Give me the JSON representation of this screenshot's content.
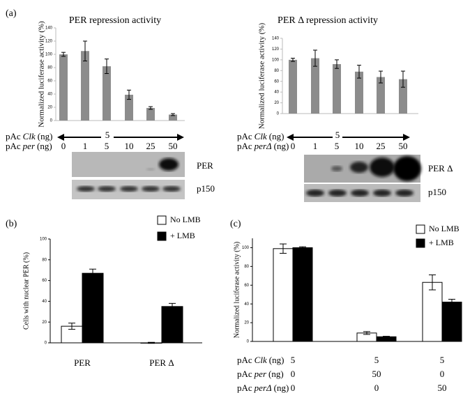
{
  "chart_data": [
    {
      "type": "bar",
      "panel_label": "(a)",
      "title": "PER repression activity",
      "y_label": "Normalized luciferase activity (%)",
      "ylim": [
        0,
        140
      ],
      "yticks": [
        0,
        20,
        40,
        60,
        80,
        100,
        120,
        140
      ],
      "color": "#8c8c8c",
      "categories": [
        "0",
        "1",
        "5",
        "10",
        "25",
        "50"
      ],
      "values": [
        100,
        105,
        82,
        39,
        19,
        9
      ],
      "errors": [
        3,
        15,
        11,
        7,
        2,
        1.5
      ],
      "clk_row": {
        "prefix": "pAc",
        "gene": "Clk",
        "unit": "(ng)",
        "value": "5"
      },
      "per_row": {
        "prefix": "pAc",
        "gene": "per",
        "unit": "(ng)"
      },
      "blot_labels": [
        "PER",
        "p150"
      ]
    },
    {
      "type": "bar",
      "title": "PER Δ repression activity",
      "y_label": "Normalized luciferase activity (%)",
      "ylim": [
        0,
        140
      ],
      "yticks": [
        0,
        20,
        40,
        60,
        80,
        100,
        120,
        140
      ],
      "color": "#8c8c8c",
      "categories": [
        "0",
        "1",
        "5",
        "10",
        "25",
        "50"
      ],
      "values": [
        100,
        103,
        92,
        78,
        68,
        64
      ],
      "errors": [
        3,
        15,
        8,
        12,
        11,
        15
      ],
      "clk_row": {
        "prefix": "pAc",
        "gene": "Clk",
        "unit": "(ng)",
        "value": "5"
      },
      "per_row": {
        "prefix": "pAc",
        "gene": "perΔ",
        "unit": "(ng)"
      },
      "blot_labels": [
        "PER Δ",
        "p150"
      ]
    },
    {
      "type": "grouped_bar",
      "panel_label": "(b)",
      "y_label": "Cells with nuclear PER (%)",
      "ylim": [
        0,
        100
      ],
      "yticks": [
        0,
        20,
        40,
        60,
        80,
        100
      ],
      "categories": [
        "PER",
        "PER Δ"
      ],
      "series": [
        {
          "name": "No LMB",
          "color": "#ffffff",
          "values": [
            16,
            0
          ],
          "errors": [
            3,
            0.5
          ]
        },
        {
          "name": "+  LMB",
          "color": "#000000",
          "values": [
            67,
            35
          ],
          "errors": [
            4,
            3
          ]
        }
      ]
    },
    {
      "type": "grouped_bar",
      "panel_label": "(c)",
      "y_label": "Normalized luciferase activity (%)",
      "ylim": [
        0,
        110
      ],
      "yticks": [
        0,
        20,
        40,
        60,
        80,
        100
      ],
      "series": [
        {
          "name": "No LMB",
          "color": "#ffffff",
          "values": [
            99,
            9,
            63
          ],
          "errors": [
            5,
            1.5,
            8
          ]
        },
        {
          "name": "+  LMB",
          "color": "#000000",
          "values": [
            100,
            5,
            42
          ],
          "errors": [
            1,
            0.5,
            3
          ]
        }
      ],
      "rows": [
        {
          "prefix": "pAc",
          "gene": "Clk",
          "unit": "(ng)",
          "values": [
            "5",
            "5",
            "5"
          ]
        },
        {
          "prefix": "pAc",
          "gene": "per",
          "unit": "(ng)",
          "values": [
            "0",
            "50",
            "0"
          ]
        },
        {
          "prefix": "pAc",
          "gene": "perΔ",
          "unit": "(ng)",
          "values": [
            "0",
            "0",
            "50"
          ]
        }
      ]
    }
  ]
}
